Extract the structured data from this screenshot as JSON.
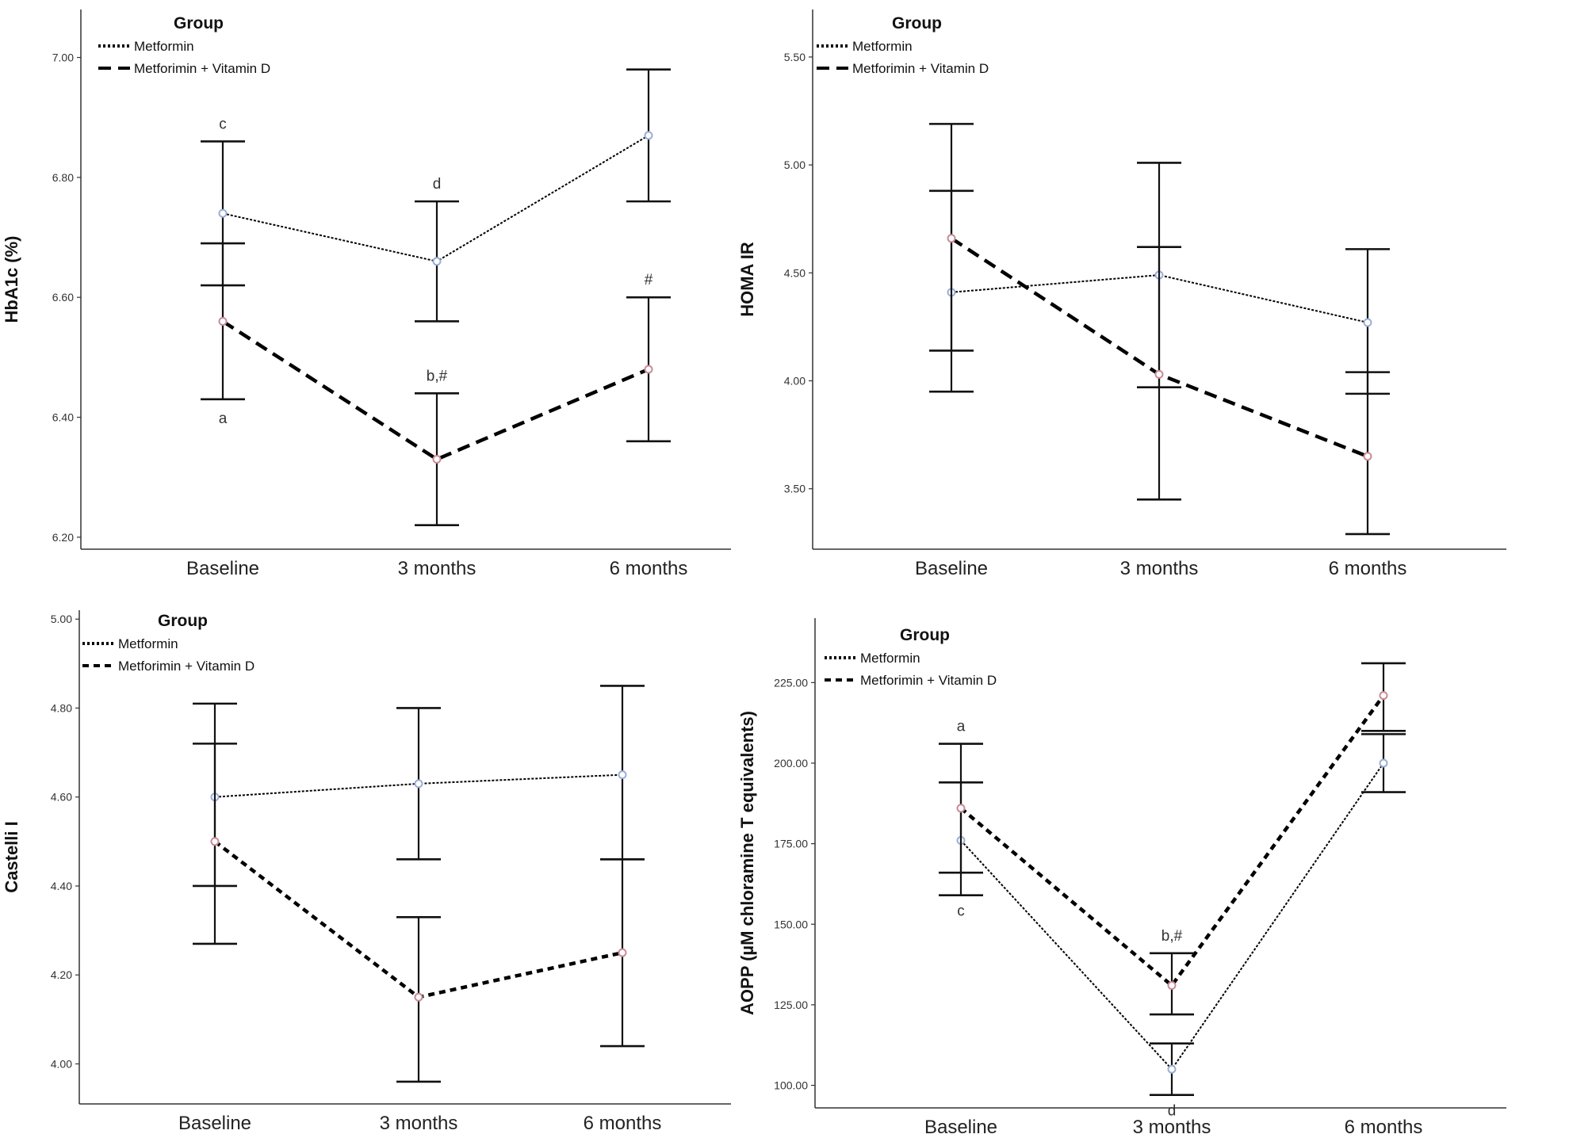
{
  "legend_title": "Group",
  "series_names": [
    "Metformin",
    "Metforimin + Vitamin D"
  ],
  "colors": {
    "metformin_marker": "#9aaed6",
    "vitd_marker": "#c98a96",
    "line": "#000000"
  },
  "chart_data": [
    {
      "type": "line",
      "title": "",
      "xlabel": "",
      "ylabel": "HbA1c (%)",
      "categories": [
        "Baseline",
        "3 months",
        "6 months"
      ],
      "ylim": [
        6.18,
        7.08
      ],
      "yticks": [
        6.2,
        6.4,
        6.6,
        6.8,
        7.0
      ],
      "ytick_labels": [
        "6.20",
        "6.40",
        "6.60",
        "6.80",
        "7.00"
      ],
      "series": [
        {
          "name": "Metformin",
          "values": [
            6.74,
            6.66,
            6.87
          ],
          "lower": [
            6.62,
            6.56,
            6.76
          ],
          "upper": [
            6.86,
            6.76,
            6.98
          ],
          "annotations": [
            "c",
            "d",
            ""
          ]
        },
        {
          "name": "Metforimin + Vitamin D",
          "values": [
            6.56,
            6.33,
            6.48
          ],
          "lower": [
            6.43,
            6.22,
            6.36
          ],
          "upper": [
            6.69,
            6.44,
            6.6
          ],
          "annotations": [
            "a",
            "b,#",
            "#"
          ]
        }
      ]
    },
    {
      "type": "line",
      "title": "",
      "xlabel": "",
      "ylabel": "HOMA IR",
      "categories": [
        "Baseline",
        "3 months",
        "6 months"
      ],
      "ylim": [
        3.22,
        5.72
      ],
      "yticks": [
        3.5,
        4.0,
        4.5,
        5.0,
        5.5
      ],
      "ytick_labels": [
        "3.50",
        "4.00",
        "4.50",
        "5.00",
        "5.50"
      ],
      "series": [
        {
          "name": "Metformin",
          "values": [
            4.41,
            4.49,
            4.27
          ],
          "lower": [
            3.95,
            3.97,
            3.94
          ],
          "upper": [
            4.88,
            5.01,
            4.61
          ],
          "annotations": [
            "",
            "",
            ""
          ]
        },
        {
          "name": "Metforimin + Vitamin D",
          "values": [
            4.66,
            4.03,
            3.65
          ],
          "lower": [
            4.14,
            3.45,
            3.29
          ],
          "upper": [
            5.19,
            4.62,
            4.04
          ],
          "annotations": [
            "",
            "",
            ""
          ]
        }
      ]
    },
    {
      "type": "line",
      "title": "",
      "xlabel": "",
      "ylabel": "Castelli I",
      "categories": [
        "Baseline",
        "3 months",
        "6 months"
      ],
      "ylim": [
        3.91,
        5.02
      ],
      "yticks": [
        4.0,
        4.2,
        4.4,
        4.6,
        4.8,
        5.0
      ],
      "ytick_labels": [
        "4.00",
        "4.20",
        "4.40",
        "4.60",
        "4.80",
        "5.00"
      ],
      "series": [
        {
          "name": "Metformin",
          "values": [
            4.6,
            4.63,
            4.65
          ],
          "lower": [
            4.4,
            4.46,
            4.46
          ],
          "upper": [
            4.81,
            4.8,
            4.85
          ],
          "annotations": [
            "",
            "",
            ""
          ]
        },
        {
          "name": "Metforimin + Vitamin D",
          "values": [
            4.5,
            4.15,
            4.25
          ],
          "lower": [
            4.27,
            3.96,
            4.04
          ],
          "upper": [
            4.72,
            4.33,
            4.46
          ],
          "annotations": [
            "",
            "",
            ""
          ]
        }
      ]
    },
    {
      "type": "line",
      "title": "",
      "xlabel": "",
      "ylabel": "AOPP (µM chloramine T equivalents)",
      "categories": [
        "Baseline",
        "3 months",
        "6 months"
      ],
      "ylim": [
        93,
        245
      ],
      "yticks": [
        100,
        125,
        150,
        175,
        200,
        225
      ],
      "ytick_labels": [
        "100.00",
        "125.00",
        "150.00",
        "175.00",
        "200.00",
        "225.00"
      ],
      "series": [
        {
          "name": "Metformin",
          "values": [
            176,
            105,
            200
          ],
          "lower": [
            159,
            97,
            191
          ],
          "upper": [
            194,
            113,
            209
          ],
          "annotations": [
            "c",
            "d",
            ""
          ]
        },
        {
          "name": "Metforimin + Vitamin D",
          "values": [
            186,
            131,
            221
          ],
          "lower": [
            166,
            122,
            210
          ],
          "upper": [
            206,
            141,
            231
          ],
          "annotations": [
            "a",
            "b,#",
            ""
          ]
        }
      ]
    }
  ]
}
